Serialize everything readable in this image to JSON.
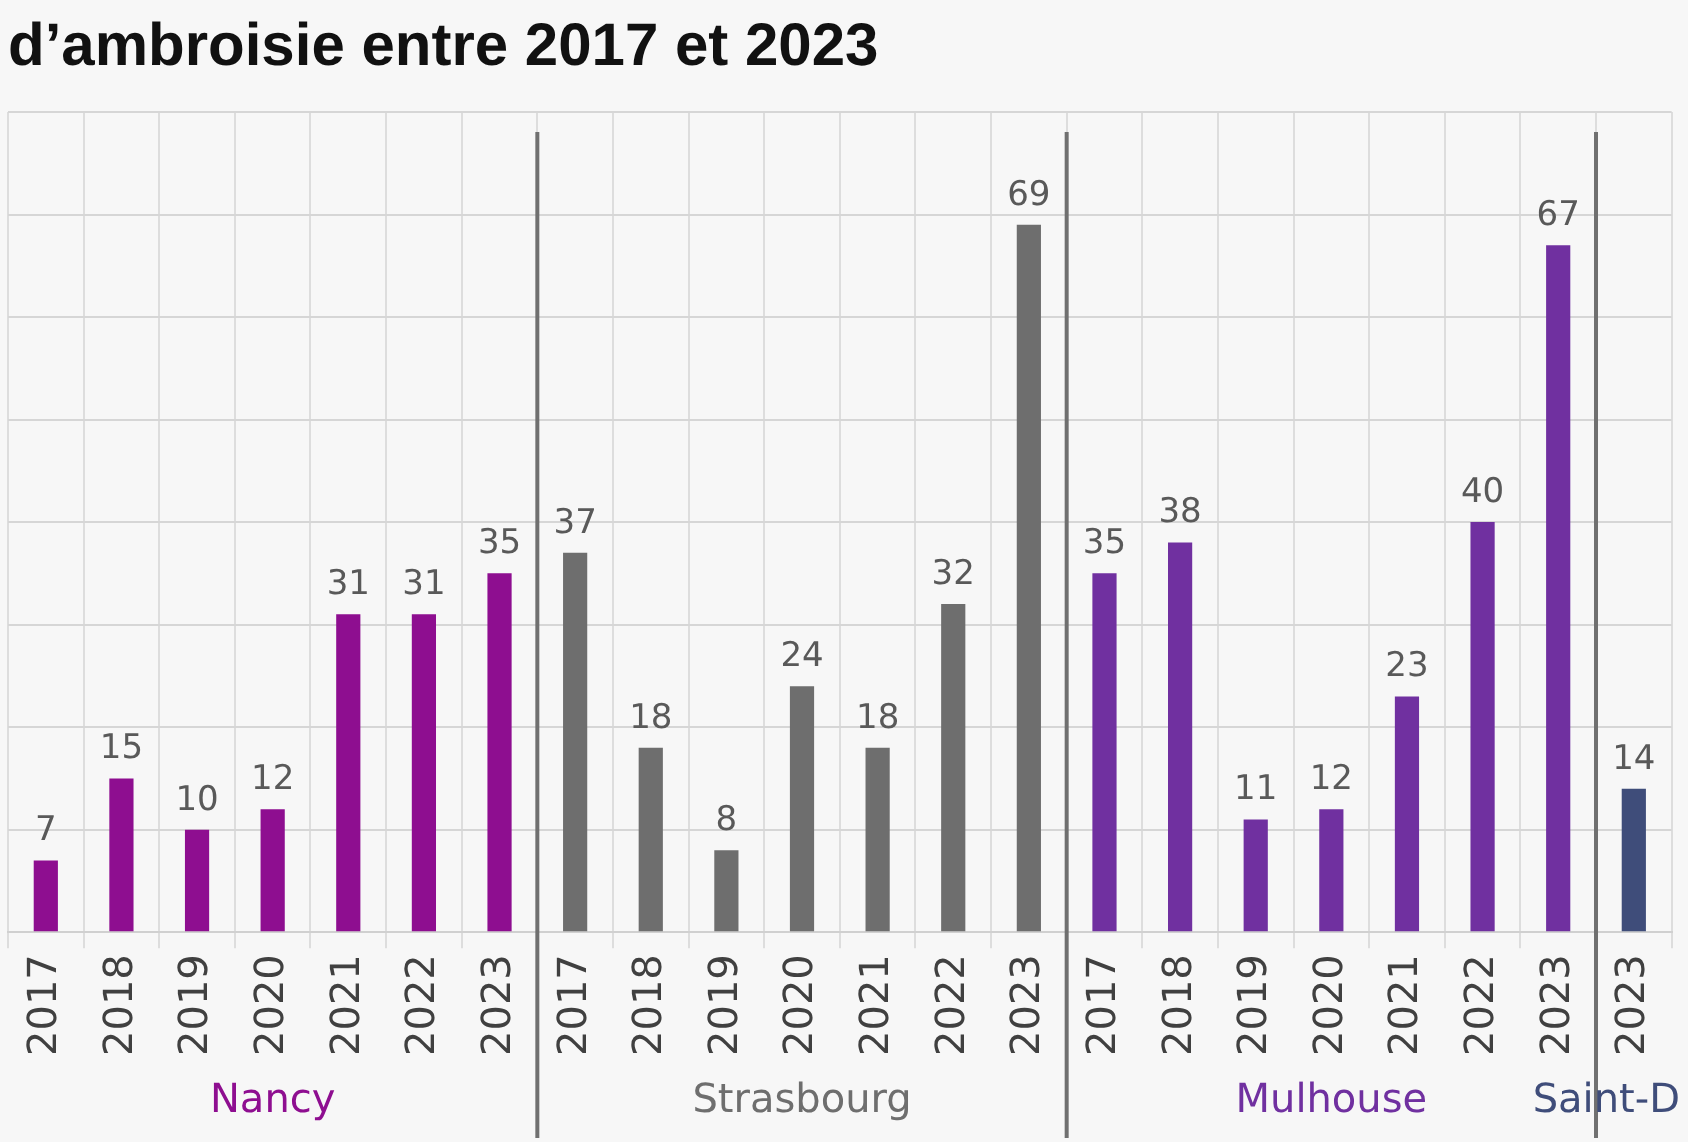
{
  "chart_data": {
    "type": "bar",
    "title": "d’ambroisie entre 2017 et 2023",
    "categories": [
      "2017",
      "2018",
      "2019",
      "2020",
      "2021",
      "2022",
      "2023",
      "2017",
      "2018",
      "2019",
      "2020",
      "2021",
      "2022",
      "2023",
      "2017",
      "2018",
      "2019",
      "2020",
      "2021",
      "2022",
      "2023",
      "2023"
    ],
    "series": [
      {
        "name": "Nancy",
        "color": "#8e0e90",
        "values": [
          7,
          15,
          10,
          12,
          31,
          31,
          35,
          null,
          null,
          null,
          null,
          null,
          null,
          null,
          null,
          null,
          null,
          null,
          null,
          null,
          null,
          null
        ]
      },
      {
        "name": "Strasbourg",
        "color": "#6e6e6e",
        "values": [
          null,
          null,
          null,
          null,
          null,
          null,
          null,
          37,
          18,
          8,
          24,
          18,
          32,
          69,
          null,
          null,
          null,
          null,
          null,
          null,
          null,
          null
        ]
      },
      {
        "name": "Mulhouse",
        "color": "#7030a0",
        "values": [
          null,
          null,
          null,
          null,
          null,
          null,
          null,
          null,
          null,
          null,
          null,
          null,
          null,
          null,
          35,
          38,
          11,
          12,
          23,
          40,
          67,
          null
        ]
      },
      {
        "name": "Saint-D",
        "color": "#3f4d7a",
        "values": [
          null,
          null,
          null,
          null,
          null,
          null,
          null,
          null,
          null,
          null,
          null,
          null,
          null,
          null,
          null,
          null,
          null,
          null,
          null,
          null,
          null,
          14
        ]
      }
    ],
    "ylim": [
      0,
      80
    ],
    "yticks": [
      {
        "value": 0,
        "label": null
      },
      {
        "value": 10,
        "label": null
      },
      {
        "value": 20,
        "label": null
      },
      {
        "value": 30,
        "label": null
      },
      {
        "value": 40,
        "label": null
      },
      {
        "value": 50,
        "label": null
      },
      {
        "value": 60,
        "label": null
      },
      {
        "value": 70,
        "label": null
      },
      {
        "value": 80,
        "label": null
      }
    ],
    "tick_labels": "x",
    "grid": true,
    "data_labels": true,
    "legend": false
  }
}
